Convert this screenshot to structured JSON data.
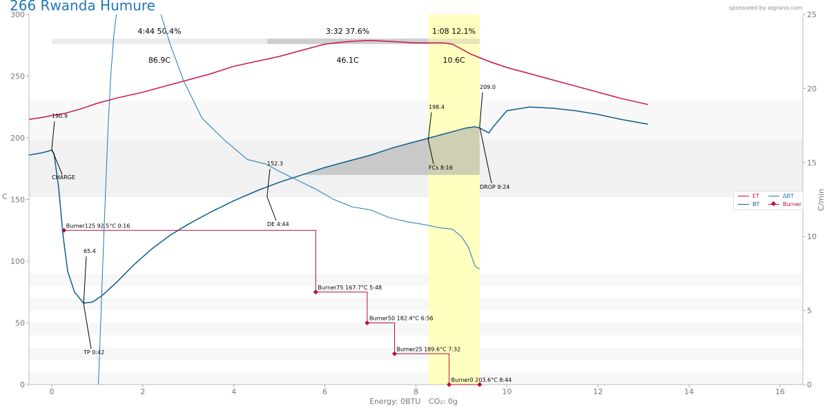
{
  "title": "266 Rwanda Humure",
  "sponsor": "sponsored by algrano.com",
  "footer": {
    "energy": "Energy: 0BTU",
    "co2": "CO₂: 0g"
  },
  "colors": {
    "et": "#cc0f50",
    "bt": "#0a5c90",
    "burner": "#b40d3c",
    "dbt": "#1f77b4",
    "fc_band": "#ffffc0"
  },
  "chart_data": {
    "type": "line",
    "xlim": [
      -0.5,
      16.5
    ],
    "ylim_left": [
      0,
      300
    ],
    "ylim_right": [
      0,
      25
    ],
    "xticks": [
      0,
      2,
      4,
      6,
      8,
      10,
      12,
      14,
      16
    ],
    "yticks_left": [
      0,
      50,
      100,
      150,
      200,
      250,
      300
    ],
    "yticks_right": [
      0,
      5,
      10,
      15,
      20,
      25
    ],
    "ylabel_left": "C",
    "ylabel_right": "C/min",
    "series": [
      {
        "name": "ET",
        "axis": "left",
        "x": [
          -0.5,
          -0.3,
          0,
          0.3,
          0.6,
          1,
          1.4,
          2,
          2.5,
          3,
          3.5,
          4,
          4.5,
          5,
          5.5,
          6,
          6.5,
          7,
          7.5,
          8,
          8.3,
          8.6,
          8.8,
          9,
          9.2,
          9.6,
          10,
          10.5,
          11,
          11.5,
          12,
          12.5,
          13.1
        ],
        "y": [
          215,
          216,
          218,
          220,
          223,
          228,
          232,
          237,
          242,
          247,
          252,
          258,
          262,
          266,
          271,
          276,
          278,
          279,
          278,
          277,
          277,
          277,
          276,
          272,
          268,
          262,
          257,
          252,
          247,
          242,
          237,
          232,
          227
        ]
      },
      {
        "name": "BT",
        "axis": "left",
        "x": [
          -0.5,
          -0.2,
          0,
          0.05,
          0.15,
          0.25,
          0.35,
          0.5,
          0.7,
          0.9,
          1.1,
          1.4,
          1.8,
          2.2,
          2.6,
          3,
          3.5,
          4,
          4.5,
          5,
          5.5,
          6,
          6.5,
          7,
          7.5,
          8,
          8.3,
          8.6,
          8.9,
          9.1,
          9.3,
          9.4,
          9.5,
          9.6,
          9.7,
          10,
          10.5,
          11,
          11.5,
          12,
          12.5,
          13.1
        ],
        "y": [
          186,
          188,
          190,
          187,
          160,
          120,
          92,
          75,
          66,
          67,
          72,
          82,
          97,
          110,
          121,
          130,
          140,
          149,
          157,
          164,
          170,
          176,
          181,
          186,
          192,
          197,
          200,
          203,
          206,
          208,
          209,
          208,
          206,
          204,
          209,
          222,
          225,
          224,
          222,
          219,
          215,
          211
        ]
      },
      {
        "name": "ΔBT",
        "axis": "right",
        "x": [
          1.0,
          1.06,
          1.12,
          1.18,
          1.24,
          1.3,
          1.36,
          1.42,
          1.48,
          1.55,
          2.0,
          2.3,
          2.6,
          2.9,
          3.3,
          3.8,
          4.3,
          4.7,
          5.0,
          5.4,
          5.8,
          6.2,
          6.6,
          7.0,
          7.4,
          7.8,
          8.2,
          8.5,
          8.8,
          9.0,
          9.15,
          9.3,
          9.4
        ],
        "y": [
          -2,
          3,
          8,
          13,
          17.5,
          21,
          23.5,
          25,
          26,
          27,
          27,
          26,
          23,
          20.5,
          18,
          16.5,
          15.2,
          14.9,
          14.4,
          13.8,
          13.2,
          12.5,
          12.0,
          11.8,
          11.3,
          11.0,
          10.8,
          10.6,
          10.5,
          10.0,
          9.3,
          8.0,
          7.8
        ]
      }
    ],
    "burner": [
      {
        "time_min": 0.27,
        "value": 125,
        "label": "Burner125 92.5°C 0:16"
      },
      {
        "time_min": 5.8,
        "value": 75,
        "label": "Burner75 167.7°C 5:48"
      },
      {
        "time_min": 6.93,
        "value": 50,
        "label": "Burner50 182.4°C 6:56"
      },
      {
        "time_min": 7.53,
        "value": 25,
        "label": "Burner25 189.6°C 7:32"
      },
      {
        "time_min": 8.73,
        "value": 0,
        "label": "Burner0 203.6°C 8:44"
      },
      {
        "time_min": 9.4,
        "value": 0,
        "label": ""
      }
    ],
    "events": [
      {
        "name": "CHARGE",
        "time_min": 0,
        "temp": 190.9,
        "label": "CHARGE",
        "value_label": "190.9"
      },
      {
        "name": "TP",
        "time_min": 0.7,
        "temp": 65.4,
        "label": "TP 0:42",
        "value_label": "65.4"
      },
      {
        "name": "DE",
        "time_min": 4.73,
        "temp": 152.3,
        "label": "DE 4:44",
        "value_label": "152.3"
      },
      {
        "name": "FCs",
        "time_min": 8.27,
        "temp": 198.4,
        "label": "FCs 8:16",
        "value_label": "198.4"
      },
      {
        "name": "DROP",
        "time_min": 9.4,
        "temp": 209.0,
        "label": "DROP 9:24",
        "value_label": "209.0"
      }
    ],
    "phases": [
      {
        "time": "4:44",
        "pct": "50.4%",
        "delta": "86.9C",
        "start_min": 0,
        "end_min": 4.73
      },
      {
        "time": "3:32",
        "pct": "37.6%",
        "delta": "46.1C",
        "start_min": 4.73,
        "end_min": 8.27
      },
      {
        "time": "1:08",
        "pct": "12.1%",
        "delta": "10.6C",
        "start_min": 8.27,
        "end_min": 9.4
      }
    ],
    "legend": [
      "ET",
      "BT",
      "ΔBT",
      "Burner"
    ]
  }
}
